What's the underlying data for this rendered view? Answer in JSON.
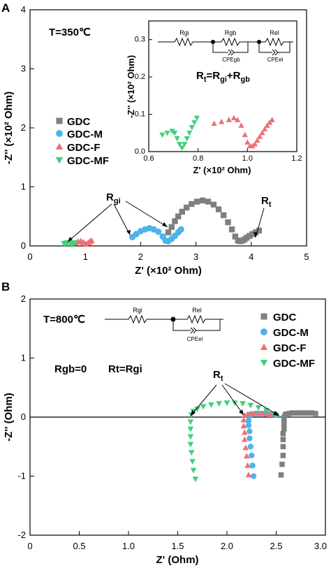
{
  "chart_data": [
    {
      "panel": "A",
      "type": "scatter",
      "annotation_temperature": "T=350℃",
      "xlabel": "Z' (×10² Ohm)",
      "ylabel": "-Z'' (×10² Ohm)",
      "xlim": [
        0,
        5
      ],
      "ylim": [
        0,
        4
      ],
      "xticks": [
        "0",
        "1",
        "2",
        "3",
        "4",
        "5"
      ],
      "yticks": [
        "0",
        "1",
        "2",
        "3",
        "4"
      ],
      "legend_position": "middle-left",
      "annotations": [
        "R",
        "gi",
        "R",
        "t"
      ],
      "series": [
        {
          "name": "GDC",
          "marker": "square",
          "color": "#7f7f7f",
          "x": [
            2.5,
            2.56,
            2.62,
            2.68,
            2.75,
            2.83,
            2.92,
            3.02,
            3.12,
            3.22,
            3.32,
            3.41,
            3.5,
            3.58,
            3.65,
            3.71,
            3.76,
            3.8,
            3.84,
            3.88,
            3.92,
            3.97,
            4.02,
            4.08,
            4.14
          ],
          "y": [
            0.23,
            0.32,
            0.42,
            0.5,
            0.58,
            0.65,
            0.71,
            0.75,
            0.77,
            0.75,
            0.7,
            0.62,
            0.52,
            0.4,
            0.28,
            0.16,
            0.09,
            0.08,
            0.09,
            0.11,
            0.14,
            0.17,
            0.2,
            0.23,
            0.26
          ]
        },
        {
          "name": "GDC-M",
          "marker": "circle",
          "color": "#4db3ea",
          "x": [
            1.85,
            1.92,
            2.0,
            2.08,
            2.16,
            2.24,
            2.32,
            2.4,
            2.45,
            2.5,
            2.56,
            2.62,
            2.68,
            2.73
          ],
          "y": [
            0.15,
            0.2,
            0.25,
            0.28,
            0.3,
            0.28,
            0.24,
            0.16,
            0.09,
            0.08,
            0.12,
            0.17,
            0.23,
            0.28
          ]
        },
        {
          "name": "GDC-F",
          "marker": "triangle-up",
          "color": "#ef6f75",
          "x": [
            0.82,
            0.87,
            0.92,
            0.97,
            1.01,
            1.05,
            1.08,
            1.11
          ],
          "y": [
            0.05,
            0.07,
            0.08,
            0.06,
            0.03,
            0.05,
            0.07,
            0.09
          ]
        },
        {
          "name": "GDC-MF",
          "marker": "triangle-down",
          "color": "#3fd17c",
          "x": [
            0.62,
            0.67,
            0.72,
            0.76,
            0.8
          ],
          "y": [
            0.04,
            0.05,
            0.05,
            0.03,
            0.05
          ]
        }
      ],
      "inset": {
        "xlabel": "Z' (×10² Ohm)",
        "ylabel": "-Z'' (×10² Ohm)",
        "xlim": [
          0.6,
          1.2
        ],
        "ylim": [
          0.0,
          0.35
        ],
        "xticks": [
          "0.6",
          "0.8",
          "1.0",
          "1.2"
        ],
        "yticks": [
          "0.0",
          "0.1",
          "0.2",
          "0.3"
        ],
        "equation": {
          "main": "R",
          "s1": "t",
          "eq": "=R",
          "s2": "gi",
          "plus": "+R",
          "s3": "gb"
        },
        "circuit": {
          "labels": [
            "Rgi",
            "Rgb",
            "CPEgb",
            "Rel",
            "CPEel"
          ]
        },
        "series": [
          {
            "name": "GDC-MF",
            "marker": "triangle-down",
            "color": "#3fd17c",
            "x": [
              0.655,
              0.675,
              0.695,
              0.705,
              0.715,
              0.725,
              0.735,
              0.745,
              0.755,
              0.765,
              0.775,
              0.785,
              0.795
            ],
            "y": [
              0.045,
              0.05,
              0.055,
              0.05,
              0.035,
              0.02,
              0.01,
              0.02,
              0.035,
              0.05,
              0.065,
              0.078,
              0.09
            ]
          },
          {
            "name": "GDC-F",
            "marker": "triangle-up",
            "color": "#ef6f75",
            "x": [
              0.865,
              0.895,
              0.925,
              0.945,
              0.96,
              0.975,
              0.99,
              1.0,
              1.01,
              1.02,
              1.03,
              1.04,
              1.05,
              1.06,
              1.07,
              1.08,
              1.09,
              1.1
            ],
            "y": [
              0.075,
              0.08,
              0.085,
              0.09,
              0.085,
              0.07,
              0.045,
              0.025,
              0.015,
              0.015,
              0.02,
              0.03,
              0.04,
              0.05,
              0.06,
              0.07,
              0.078,
              0.085
            ]
          }
        ]
      }
    },
    {
      "panel": "B",
      "type": "scatter",
      "annotation_temperature": "T=800℃",
      "xlabel": "Z' (Ohm)",
      "ylabel": "-Z'' (Ohm)",
      "xlim": [
        0,
        3
      ],
      "ylim": [
        -2,
        2
      ],
      "xticks": [
        "0",
        "0.5",
        "1.0",
        "1.5",
        "2.0",
        "2.5",
        "3.0"
      ],
      "yticks": [
        "-2",
        "-1",
        "0",
        "1",
        "2"
      ],
      "legend_position": "top-right",
      "notes": [
        "Rgb=0",
        "Rt=Rgi"
      ],
      "annotations": [
        "R",
        "t"
      ],
      "circuit": {
        "labels": [
          "Rgi",
          "Rel",
          "CPEel"
        ]
      },
      "series": [
        {
          "name": "GDC",
          "marker": "square",
          "color": "#7f7f7f",
          "x": [
            2.55,
            2.56,
            2.57,
            2.57,
            2.57,
            2.57,
            2.58,
            2.58,
            2.58,
            2.58,
            2.59,
            2.6,
            2.63,
            2.66,
            2.7,
            2.74,
            2.78,
            2.82,
            2.86,
            2.9
          ],
          "y": [
            -0.98,
            -0.8,
            -0.65,
            -0.5,
            -0.38,
            -0.28,
            -0.2,
            -0.12,
            -0.06,
            -0.01,
            0.03,
            0.05,
            0.06,
            0.07,
            0.07,
            0.07,
            0.07,
            0.07,
            0.07,
            0.06
          ]
        },
        {
          "name": "GDC-M",
          "marker": "circle",
          "color": "#4db3ea",
          "x": [
            2.27,
            2.26,
            2.25,
            2.24,
            2.23,
            2.23,
            2.22,
            2.22,
            2.22,
            2.23,
            2.26,
            2.3,
            2.34,
            2.38,
            2.42,
            2.46,
            2.5
          ],
          "y": [
            -1.0,
            -0.82,
            -0.65,
            -0.5,
            -0.36,
            -0.24,
            -0.14,
            -0.06,
            0.01,
            0.04,
            0.05,
            0.06,
            0.06,
            0.06,
            0.06,
            0.05,
            0.04
          ]
        },
        {
          "name": "GDC-F",
          "marker": "triangle-up",
          "color": "#ef6f75",
          "x": [
            2.22,
            2.21,
            2.2,
            2.19,
            2.18,
            2.18,
            2.17,
            2.17,
            2.18,
            2.21,
            2.24,
            2.28,
            2.32,
            2.36,
            2.4,
            2.44
          ],
          "y": [
            -0.98,
            -0.82,
            -0.66,
            -0.52,
            -0.38,
            -0.26,
            -0.15,
            -0.05,
            0.03,
            0.05,
            0.06,
            0.06,
            0.06,
            0.06,
            0.05,
            0.04
          ]
        },
        {
          "name": "GDC-MF",
          "marker": "triangle-down",
          "color": "#3fd17c",
          "x": [
            1.68,
            1.66,
            1.65,
            1.64,
            1.63,
            1.63,
            1.63,
            1.63,
            1.64,
            1.66,
            1.7,
            1.76,
            1.84,
            1.92,
            2.0,
            2.08,
            2.16,
            2.24,
            2.32,
            2.4,
            2.48
          ],
          "y": [
            -1.05,
            -0.9,
            -0.75,
            -0.6,
            -0.46,
            -0.33,
            -0.2,
            -0.08,
            0.04,
            0.1,
            0.14,
            0.18,
            0.21,
            0.23,
            0.24,
            0.24,
            0.23,
            0.2,
            0.16,
            0.11,
            0.05
          ]
        }
      ]
    }
  ]
}
